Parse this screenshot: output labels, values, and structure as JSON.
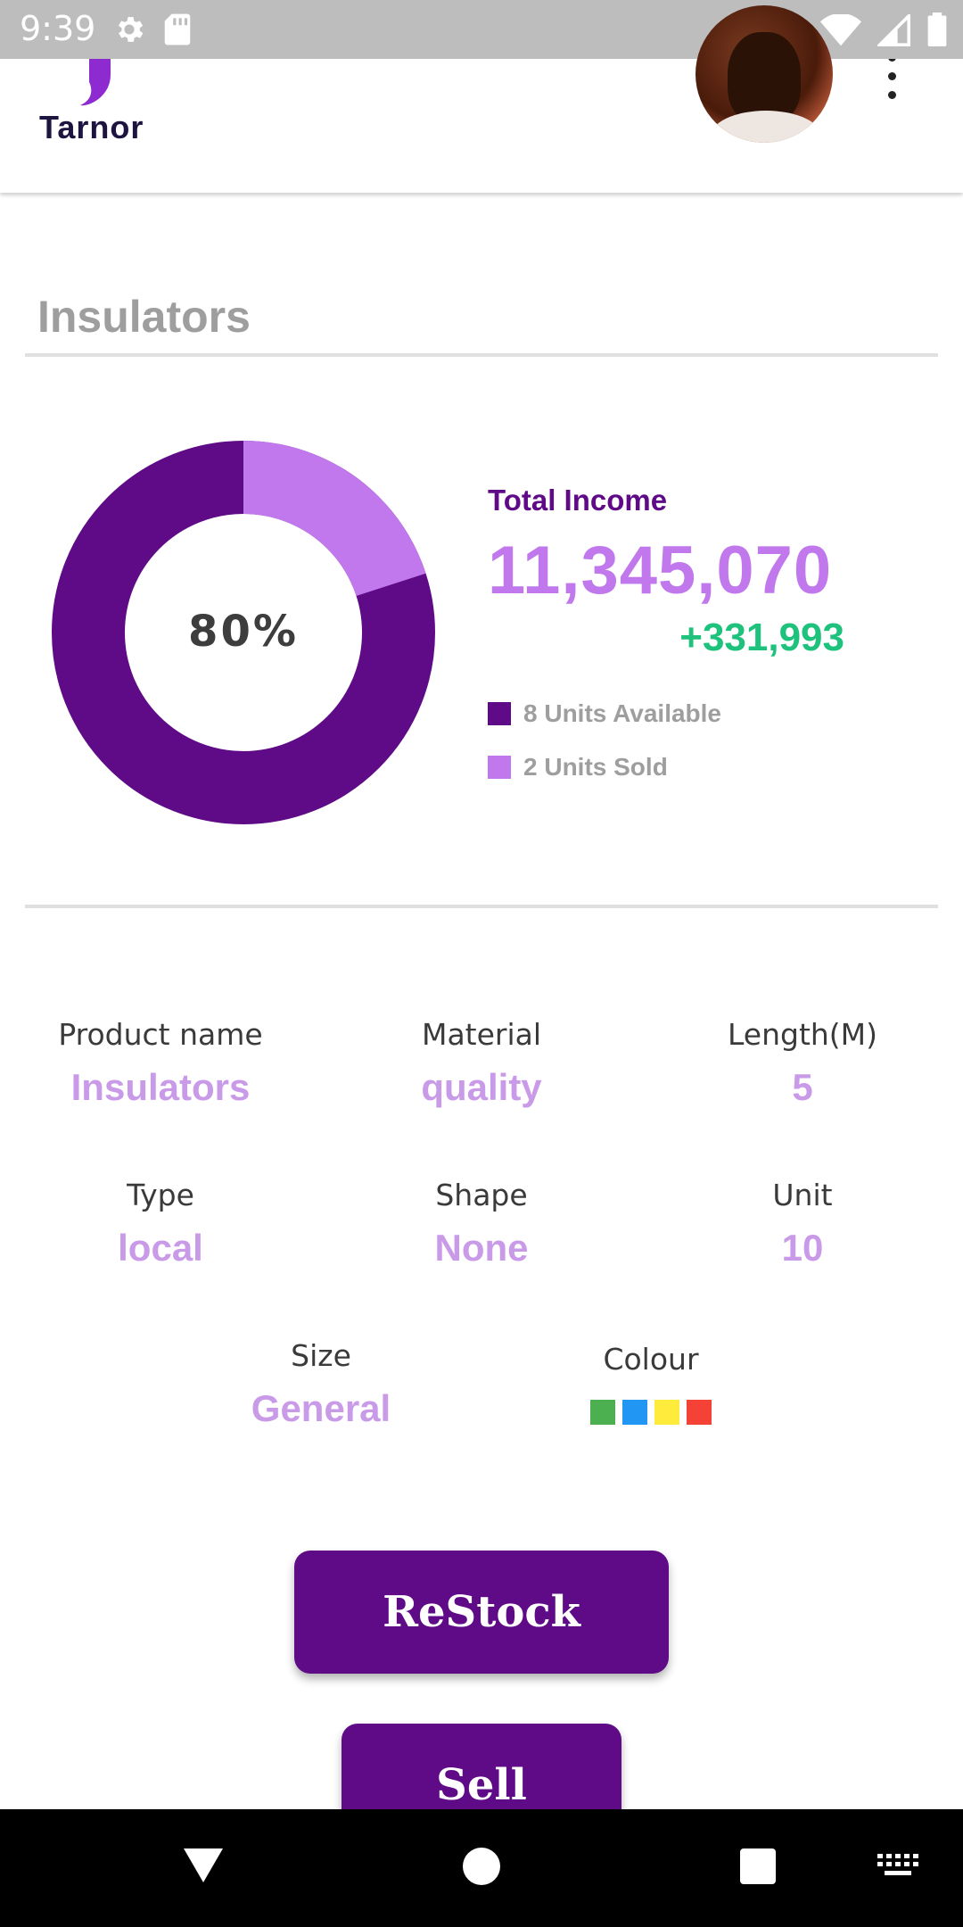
{
  "status_bar": {
    "time": "9:39",
    "left_icons": [
      "gear-icon",
      "sd-card-icon"
    ],
    "right_icons": [
      "wifi-icon",
      "signal-icon",
      "battery-icon"
    ]
  },
  "header": {
    "logo_text": "Tarnor",
    "brand_color": "#5f0a87"
  },
  "product": {
    "title": "Insulators",
    "donut": {
      "center_label": "80%",
      "available_fraction": 0.8,
      "sold_fraction": 0.2,
      "available_color": "#5f0a87",
      "sold_color": "#c078ec"
    },
    "income": {
      "label": "Total Income",
      "value": "11,345,070",
      "delta": "+331,993"
    },
    "legend": [
      {
        "label": "8 Units Available",
        "color": "#5f0a87"
      },
      {
        "label": "2 Units Sold",
        "color": "#c078ec"
      }
    ],
    "details": {
      "product_name": {
        "label": "Product name",
        "value": "Insulators"
      },
      "material": {
        "label": "Material",
        "value": "quality"
      },
      "length": {
        "label": "Length(M)",
        "value": "5"
      },
      "type": {
        "label": "Type",
        "value": "local"
      },
      "shape": {
        "label": "Shape",
        "value": "None"
      },
      "unit": {
        "label": "Unit",
        "value": "10"
      },
      "size": {
        "label": "Size",
        "value": "General"
      },
      "colour": {
        "label": "Colour",
        "swatches": [
          "#4caf50",
          "#2196f3",
          "#ffeb3b",
          "#f44336"
        ]
      }
    }
  },
  "actions": {
    "restock_label": "ReStock",
    "sell_label": "Sell"
  },
  "nav_bar": {
    "icons": [
      "back-icon",
      "home-icon",
      "recents-icon",
      "keyboard-icon"
    ]
  }
}
